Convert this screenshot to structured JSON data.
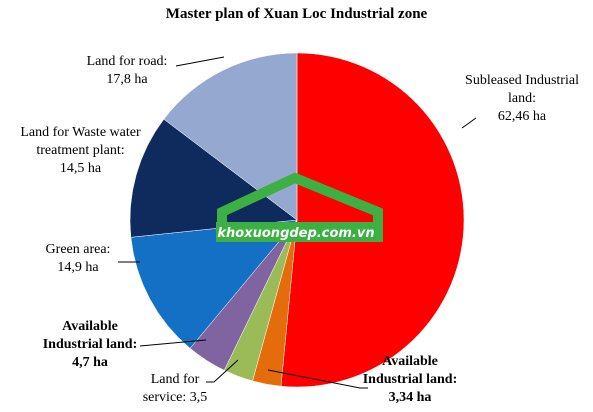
{
  "chart_data": {
    "type": "pie",
    "title": "Master plan of Xuan Loc Industrial zone",
    "categories": [
      "Subleased Industrial land:",
      "Available Industrial land:",
      "Land for service:",
      "Available Industrial land:",
      "Green area:",
      "Land for Waste water treatment plant:",
      "Land for road:"
    ],
    "values": [
      62.46,
      3.34,
      3.5,
      4.7,
      14.9,
      14.5,
      17.8
    ],
    "value_labels": [
      "62,46 ha",
      "3,34 ha",
      "3,5",
      "4,7 ha",
      "14,9 ha",
      "14,5 ha",
      "17,8 ha"
    ],
    "colors": [
      "#ff0000",
      "#e46c0a",
      "#9bbb59",
      "#8064a2",
      "#1470c4",
      "#0f2a5c",
      "#95a8d0"
    ],
    "watermark": "khoxuongdep.com.vn"
  }
}
